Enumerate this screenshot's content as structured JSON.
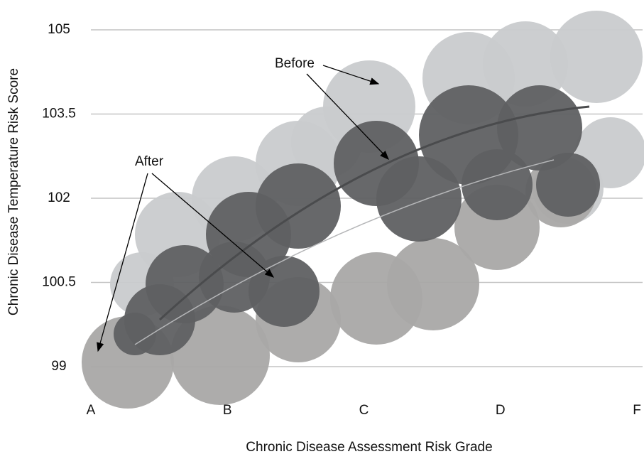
{
  "chart_data": {
    "type": "cloud",
    "x_label": "Chronic Disease Assessment Risk Grade",
    "y_label": "Chronic Disease Temperature Risk Score",
    "categories": [
      "A",
      "B",
      "C",
      "D",
      "F"
    ],
    "ylim": [
      99,
      105
    ],
    "yticks": [
      99,
      100.5,
      102,
      103.5,
      105
    ],
    "grid": true,
    "annotations": [
      "Before",
      "After"
    ]
  }
}
